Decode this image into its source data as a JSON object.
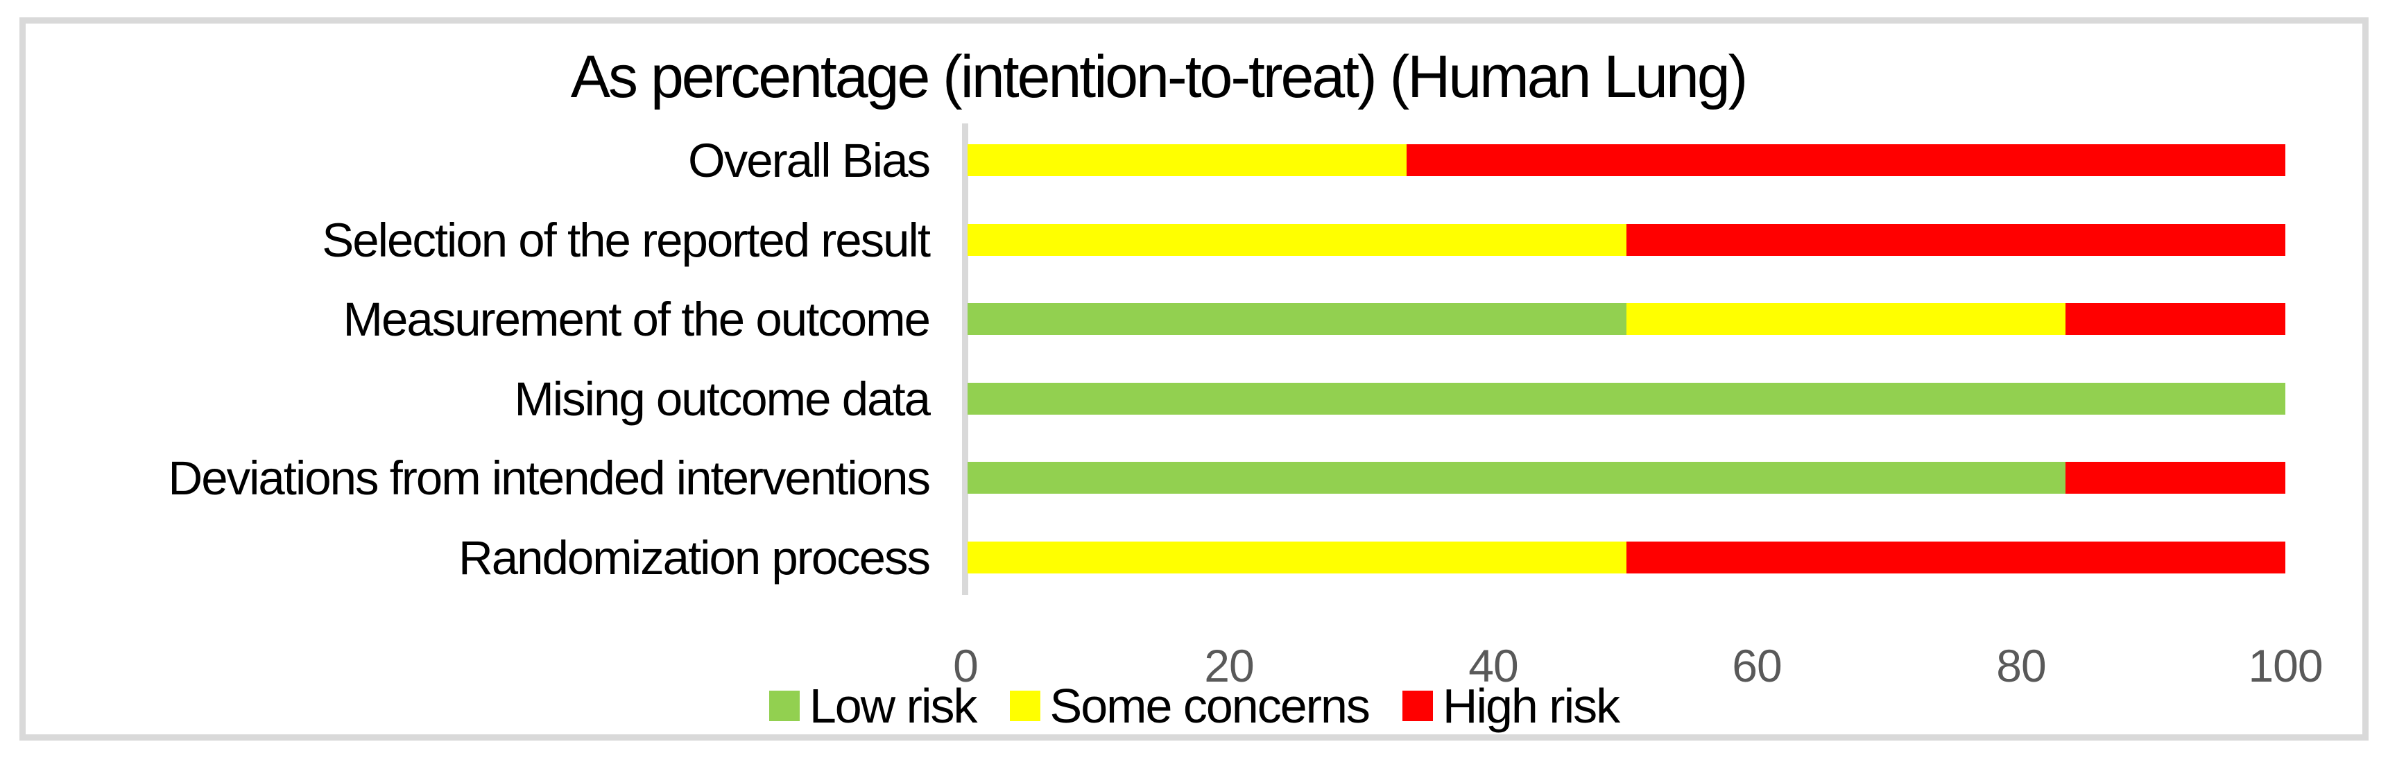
{
  "chart_data": {
    "type": "bar",
    "orientation": "horizontal",
    "stacked": true,
    "unit": "percent",
    "title": "As percentage (intention-to-treat) (Human Lung)",
    "categories": [
      "Overall Bias",
      "Selection of the reported result",
      "Measurement of the outcome",
      "Mising outcome data",
      "Deviations from intended interventions",
      "Randomization process"
    ],
    "series": [
      {
        "name": "Low risk",
        "color": "#92d050",
        "values": [
          0,
          0,
          50,
          100,
          83.33,
          0
        ]
      },
      {
        "name": "Some concerns",
        "color": "#ffff00",
        "values": [
          33.33,
          50,
          33.33,
          0,
          0,
          50
        ]
      },
      {
        "name": "High risk",
        "color": "#ff0000",
        "values": [
          66.67,
          50,
          16.67,
          0,
          16.67,
          50
        ]
      }
    ],
    "x_axis": {
      "min": 0,
      "max": 100,
      "ticks": [
        0,
        20,
        40,
        60,
        80,
        100
      ],
      "tick_color": "#595959"
    },
    "legend_position": "bottom",
    "grid": false,
    "axis_line_color": "#d9d9d9",
    "frame_color": "#d9d9d9"
  }
}
